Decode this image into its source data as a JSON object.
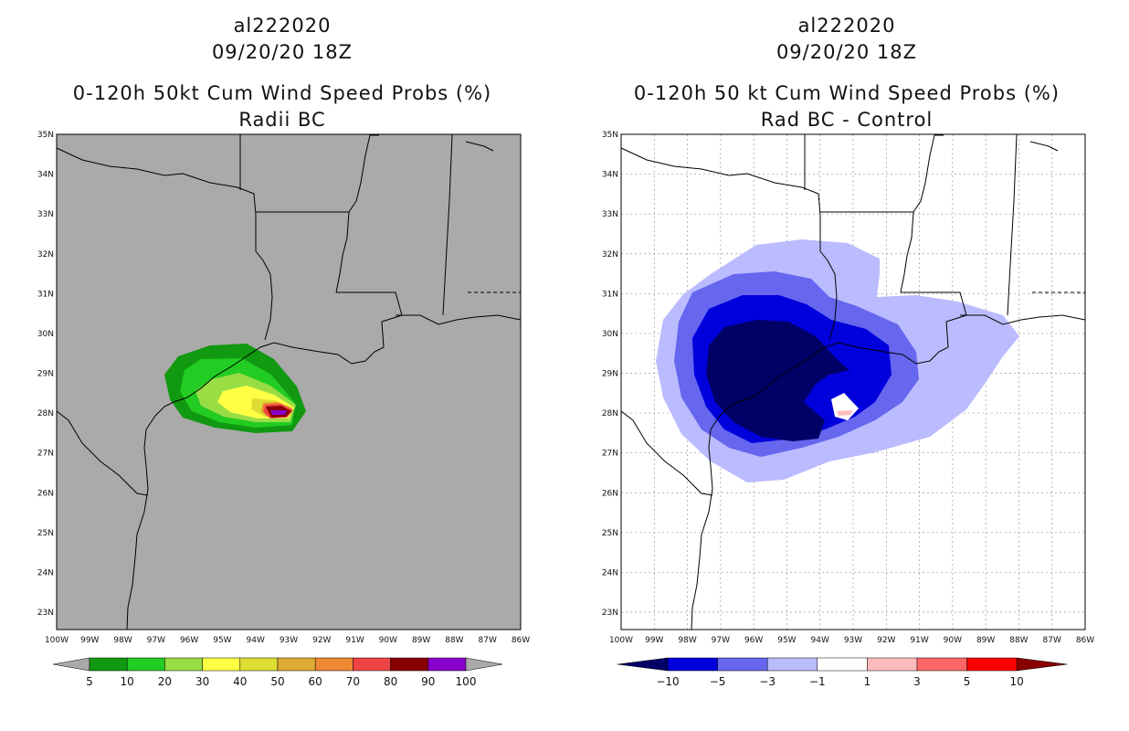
{
  "left_panel": {
    "storm_id": "al222020",
    "datetime": "09/20/20 18Z",
    "product": "0-120h 50kt Cum Wind Speed Probs (%)",
    "subtitle": "Radii BC",
    "legend": {
      "labels": [
        "5",
        "10",
        "20",
        "30",
        "40",
        "50",
        "60",
        "70",
        "80",
        "90",
        "100"
      ],
      "colors": [
        "#119911",
        "#22cc22",
        "#99dd44",
        "#ffff44",
        "#dddd33",
        "#ddaa33",
        "#ee8833",
        "#ee4444",
        "#880000",
        "#8800cc"
      ]
    }
  },
  "right_panel": {
    "storm_id": "al222020",
    "datetime": "09/20/20 18Z",
    "product": "0-120h 50 kt Cum Wind Speed Probs (%)",
    "subtitle": "Rad BC - Control",
    "legend": {
      "labels": [
        "-10",
        "-5",
        "-3",
        "-1",
        "1",
        "3",
        "5",
        "10"
      ],
      "colors": [
        "#000066",
        "#0000dd",
        "#6666ee",
        "#bbbbff",
        "#ffffff",
        "#ffbbbb",
        "#ff6666",
        "#ff0000",
        "#880000"
      ]
    }
  },
  "axes": {
    "lat_labels": [
      "35N",
      "34N",
      "33N",
      "32N",
      "31N",
      "30N",
      "29N",
      "28N",
      "27N",
      "26N",
      "25N",
      "24N",
      "23N"
    ],
    "lon_labels": [
      "100W",
      "99W",
      "98W",
      "97W",
      "96W",
      "95W",
      "94W",
      "93W",
      "92W",
      "91W",
      "90W",
      "89W",
      "88W",
      "87W",
      "86W"
    ]
  }
}
